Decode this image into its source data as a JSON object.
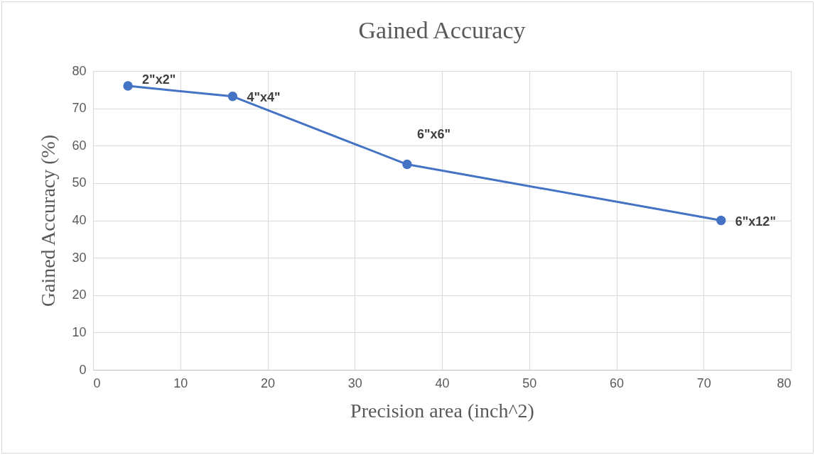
{
  "chart_data": {
    "type": "line",
    "title": "Gained Accuracy",
    "xlabel": "Precision area (inch^2)",
    "ylabel": "Gained Accuracy (%)",
    "x": [
      4,
      16,
      36,
      72
    ],
    "series": [
      {
        "color": "#4472c4",
        "values": [
          76,
          73.2,
          55,
          40
        ]
      }
    ],
    "xlim": [
      0,
      80
    ],
    "xticks": [
      0,
      10,
      20,
      30,
      40,
      50,
      60,
      70,
      80
    ],
    "ylim": [
      0,
      80
    ],
    "yticks": [
      0,
      10,
      20,
      30,
      40,
      50,
      60,
      70,
      80
    ],
    "grid": true,
    "marker": "circle",
    "line_style": "solid",
    "legend": false,
    "annotations": [
      {
        "text": "2\"x2\"",
        "x": 4,
        "y": 76
      },
      {
        "text": "4\"x4\"",
        "x": 16,
        "y": 73.2
      },
      {
        "text": "6\"x6\"",
        "x": 36,
        "y": 55
      },
      {
        "text": "6\"x12\"",
        "x": 72,
        "y": 40
      }
    ]
  }
}
